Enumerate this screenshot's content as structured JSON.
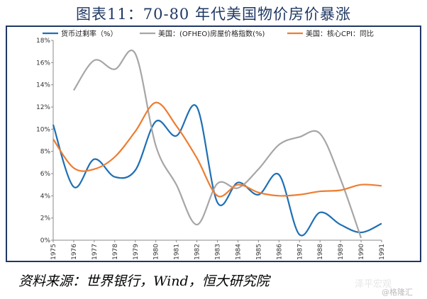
{
  "title": "图表11：70-80 年代美国物价房价暴涨",
  "source": "资料来源：世界银行，Wind，恒大研究院",
  "watermark": "泽平宏观",
  "watermark2": "@格隆汇",
  "chart_data": {
    "type": "line",
    "x": [
      1975,
      1976,
      1977,
      1978,
      1979,
      1980,
      1981,
      1982,
      1983,
      1984,
      1985,
      1986,
      1987,
      1988,
      1989,
      1990,
      1991
    ],
    "x_tick_labels": [
      "1975",
      "1976",
      "1977",
      "1978",
      "1979",
      "1980",
      "1981",
      "1982",
      "1983",
      "1984",
      "1985",
      "1986",
      "1987",
      "1988",
      "1989",
      "1990",
      "1991"
    ],
    "ylim": [
      0,
      18
    ],
    "y_ticks": [
      0,
      2,
      4,
      6,
      8,
      10,
      12,
      14,
      16,
      18
    ],
    "y_tick_labels": [
      "0%",
      "2%",
      "4%",
      "6%",
      "8%",
      "10%",
      "12%",
      "14%",
      "16%",
      "18%"
    ],
    "legend_position": "top",
    "series": [
      {
        "name": "货币过剩率（%）",
        "color": "#1f6fb4",
        "values": [
          10.4,
          4.8,
          7.3,
          5.7,
          6.3,
          10.7,
          9.4,
          12.0,
          3.4,
          5.2,
          4.1,
          5.9,
          0.5,
          2.5,
          1.4,
          0.7,
          1.5
        ]
      },
      {
        "name": "美国：(OFHEO)房屋价格指数(%)",
        "color": "#a6a6a6",
        "values": [
          null,
          13.5,
          16.2,
          15.4,
          16.8,
          8.5,
          5.0,
          1.4,
          5.1,
          4.7,
          6.4,
          8.6,
          9.3,
          9.6,
          5.5,
          0.2,
          null
        ]
      },
      {
        "name": "美国：核心CPI：同比",
        "color": "#ed7d31",
        "values": [
          9.1,
          6.5,
          6.4,
          7.5,
          9.8,
          12.4,
          10.3,
          7.4,
          4.0,
          5.0,
          4.3,
          4.0,
          4.1,
          4.4,
          4.5,
          5.0,
          4.9
        ]
      }
    ]
  }
}
